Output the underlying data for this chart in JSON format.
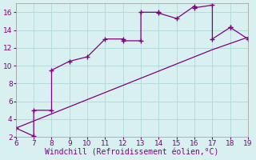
{
  "xlabel": "Windchill (Refroidissement éolien,°C)",
  "x_jagged": [
    6,
    7,
    7,
    8,
    8,
    9,
    10,
    11,
    12,
    12,
    13,
    13,
    14,
    14,
    15,
    16,
    16,
    17,
    17,
    18,
    18,
    19
  ],
  "y_jagged": [
    3,
    2.1,
    5,
    5,
    9.5,
    10.5,
    11,
    13,
    13,
    12.8,
    12.8,
    16,
    16,
    15.9,
    15.3,
    16.7,
    16.5,
    16.8,
    13,
    14.3,
    14.3,
    13
  ],
  "x_line": [
    6,
    7,
    8,
    9,
    10,
    11,
    12,
    13,
    14,
    15,
    16,
    17,
    18,
    19
  ],
  "y_line": [
    3.0,
    3.8,
    4.6,
    5.4,
    6.2,
    7.0,
    7.8,
    8.6,
    9.4,
    10.2,
    11.0,
    11.8,
    12.5,
    13.2
  ],
  "line_color": "#800080",
  "bg_color": "#d8f0f0",
  "grid_color": "#b0d8d8",
  "xlim": [
    6,
    19
  ],
  "ylim": [
    2,
    17
  ],
  "xticks": [
    6,
    7,
    8,
    9,
    10,
    11,
    12,
    13,
    14,
    15,
    16,
    17,
    18,
    19
  ],
  "yticks": [
    2,
    4,
    6,
    8,
    10,
    12,
    14,
    16
  ],
  "tick_fontsize": 6.5,
  "xlabel_fontsize": 7
}
